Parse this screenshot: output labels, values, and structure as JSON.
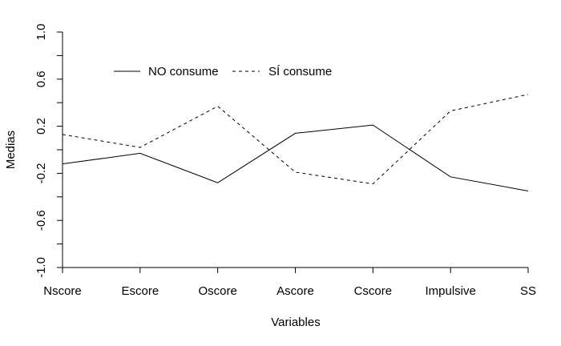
{
  "chart_data": {
    "type": "line",
    "title": "",
    "xlabel": "Variables",
    "ylabel": "Medias",
    "categories": [
      "Nscore",
      "Escore",
      "Oscore",
      "Ascore",
      "Cscore",
      "Impulsive",
      "SS"
    ],
    "ylim": [
      -1.0,
      1.0
    ],
    "yticks": [
      -1.0,
      -0.6,
      -0.2,
      0.2,
      0.6,
      1.0
    ],
    "ytick_labels": [
      "-1.0",
      "-0.6",
      "-0.2",
      "0.2",
      "0.6",
      "1.0"
    ],
    "grid": false,
    "legend_position": "top-left",
    "series": [
      {
        "name": "NO consume",
        "line_style": "solid",
        "color": "#000000",
        "values": [
          -0.12,
          -0.03,
          -0.28,
          0.14,
          0.21,
          -0.23,
          -0.35
        ]
      },
      {
        "name": "SÍ consume",
        "line_style": "dashed",
        "color": "#000000",
        "values": [
          0.13,
          0.02,
          0.37,
          -0.19,
          -0.29,
          0.33,
          0.47
        ]
      }
    ]
  }
}
